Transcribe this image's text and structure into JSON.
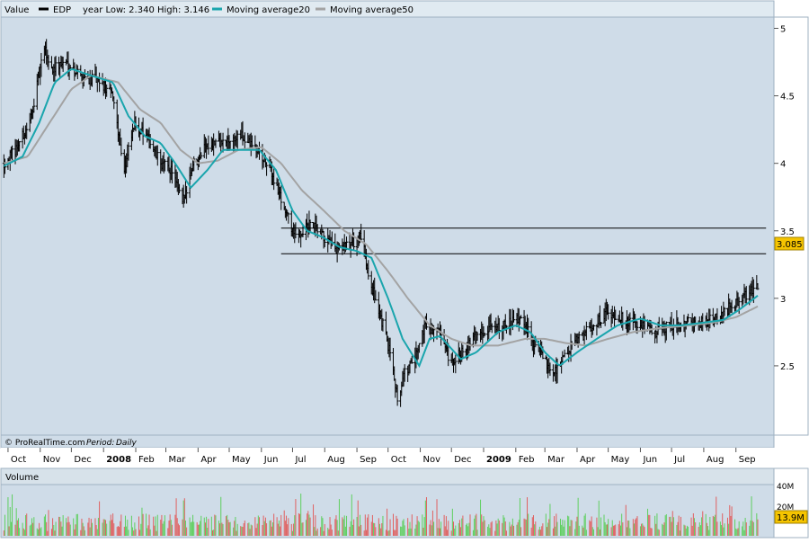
{
  "legend": {
    "value_label": "Value",
    "symbol": "EDP",
    "range_text": "year Low: 2.340 High: 3.146",
    "ma20_label": "Moving average20",
    "ma50_label": "Moving average50"
  },
  "footer": {
    "brand": "© ProRealTime.com",
    "period_label": "Period:",
    "period_value": "Daily"
  },
  "volume_panel": {
    "title": "Volume",
    "ticks": [
      "40M",
      "20M"
    ],
    "last_value": "13.9M"
  },
  "last_price_label": "3.085",
  "colors": {
    "plot_bg": "#cfdce8",
    "price_bar": "#000000",
    "ma20": "#1aa5ad",
    "ma50": "#a3a3a3",
    "vol_up": "#5fcf5f",
    "vol_down": "#e06060",
    "last_label_bg": "#f5c400",
    "header_bg": "#e0eaf1"
  },
  "chart_data": {
    "type": "ohlc",
    "symbol": "EDP",
    "y_ticks": [
      2.5,
      3,
      3.5,
      4,
      4.5,
      5
    ],
    "ylim": [
      2.0,
      5.05
    ],
    "x_labels": [
      {
        "text": "Oct",
        "x": "2007-10-01"
      },
      {
        "text": "Nov",
        "x": "2007-11-01"
      },
      {
        "text": "Dec",
        "x": "2007-12-01"
      },
      {
        "text": "2008",
        "x": "2008-01-01",
        "bold": true
      },
      {
        "text": "Feb",
        "x": "2008-02-01"
      },
      {
        "text": "Mar",
        "x": "2008-03-01"
      },
      {
        "text": "Apr",
        "x": "2008-04-01"
      },
      {
        "text": "May",
        "x": "2008-05-01"
      },
      {
        "text": "Jun",
        "x": "2008-06-01"
      },
      {
        "text": "Jul",
        "x": "2008-07-01"
      },
      {
        "text": "Aug",
        "x": "2008-08-01"
      },
      {
        "text": "Sep",
        "x": "2008-09-01"
      },
      {
        "text": "Oct",
        "x": "2008-10-01"
      },
      {
        "text": "Nov",
        "x": "2008-11-01"
      },
      {
        "text": "Dec",
        "x": "2008-12-01"
      },
      {
        "text": "2009",
        "x": "2009-01-01",
        "bold": true
      },
      {
        "text": "Feb",
        "x": "2009-02-01"
      },
      {
        "text": "Mar",
        "x": "2009-03-01"
      },
      {
        "text": "Apr",
        "x": "2009-04-01"
      },
      {
        "text": "May",
        "x": "2009-05-01"
      },
      {
        "text": "Jun",
        "x": "2009-06-01"
      },
      {
        "text": "Jul",
        "x": "2009-07-01"
      },
      {
        "text": "Aug",
        "x": "2009-08-01"
      },
      {
        "text": "Sep",
        "x": "2009-09-01"
      }
    ],
    "xlim": [
      "2007-09-25",
      "2009-10-05"
    ],
    "price_anchors": [
      [
        "2007-09-27",
        4.0
      ],
      [
        "2007-10-08",
        4.1
      ],
      [
        "2007-10-22",
        4.3
      ],
      [
        "2007-11-05",
        4.85
      ],
      [
        "2007-11-12",
        4.7
      ],
      [
        "2007-11-26",
        4.75
      ],
      [
        "2007-12-10",
        4.65
      ],
      [
        "2007-12-28",
        4.6
      ],
      [
        "2008-01-10",
        4.5
      ],
      [
        "2008-01-21",
        3.95
      ],
      [
        "2008-01-31",
        4.3
      ],
      [
        "2008-02-15",
        4.15
      ],
      [
        "2008-02-25",
        4.0
      ],
      [
        "2008-03-07",
        3.95
      ],
      [
        "2008-03-17",
        3.7
      ],
      [
        "2008-03-27",
        4.0
      ],
      [
        "2008-04-11",
        4.15
      ],
      [
        "2008-04-25",
        4.15
      ],
      [
        "2008-05-12",
        4.2
      ],
      [
        "2008-05-28",
        4.1
      ],
      [
        "2008-06-10",
        3.95
      ],
      [
        "2008-06-24",
        3.65
      ],
      [
        "2008-07-04",
        3.45
      ],
      [
        "2008-07-18",
        3.55
      ],
      [
        "2008-07-31",
        3.45
      ],
      [
        "2008-08-12",
        3.35
      ],
      [
        "2008-08-25",
        3.4
      ],
      [
        "2008-09-05",
        3.45
      ],
      [
        "2008-09-15",
        3.1
      ],
      [
        "2008-09-26",
        2.8
      ],
      [
        "2008-10-06",
        2.5
      ],
      [
        "2008-10-10",
        2.25
      ],
      [
        "2008-10-17",
        2.45
      ],
      [
        "2008-10-27",
        2.55
      ],
      [
        "2008-11-05",
        2.8
      ],
      [
        "2008-11-18",
        2.75
      ],
      [
        "2008-12-01",
        2.5
      ],
      [
        "2008-12-10",
        2.6
      ],
      [
        "2008-12-22",
        2.7
      ],
      [
        "2009-01-07",
        2.8
      ],
      [
        "2009-01-23",
        2.8
      ],
      [
        "2009-02-06",
        2.85
      ],
      [
        "2009-02-20",
        2.65
      ],
      [
        "2009-03-09",
        2.45
      ],
      [
        "2009-03-18",
        2.55
      ],
      [
        "2009-04-02",
        2.7
      ],
      [
        "2009-04-17",
        2.8
      ],
      [
        "2009-04-30",
        2.9
      ],
      [
        "2009-05-15",
        2.85
      ],
      [
        "2009-05-28",
        2.8
      ],
      [
        "2009-06-15",
        2.75
      ],
      [
        "2009-07-01",
        2.8
      ],
      [
        "2009-07-15",
        2.82
      ],
      [
        "2009-07-31",
        2.82
      ],
      [
        "2009-08-14",
        2.85
      ],
      [
        "2009-08-28",
        2.95
      ],
      [
        "2009-09-10",
        3.02
      ],
      [
        "2009-09-22",
        3.085
      ]
    ],
    "ma20_anchors": [
      [
        "2007-09-27",
        3.98
      ],
      [
        "2007-10-15",
        4.05
      ],
      [
        "2007-10-31",
        4.3
      ],
      [
        "2007-11-15",
        4.6
      ],
      [
        "2007-12-01",
        4.7
      ],
      [
        "2007-12-20",
        4.65
      ],
      [
        "2008-01-10",
        4.6
      ],
      [
        "2008-01-25",
        4.35
      ],
      [
        "2008-02-10",
        4.2
      ],
      [
        "2008-02-25",
        4.15
      ],
      [
        "2008-03-10",
        4.0
      ],
      [
        "2008-03-25",
        3.82
      ],
      [
        "2008-04-10",
        3.95
      ],
      [
        "2008-04-25",
        4.1
      ],
      [
        "2008-05-15",
        4.1
      ],
      [
        "2008-05-30",
        4.1
      ],
      [
        "2008-06-15",
        3.95
      ],
      [
        "2008-07-01",
        3.65
      ],
      [
        "2008-07-15",
        3.5
      ],
      [
        "2008-07-31",
        3.45
      ],
      [
        "2008-08-15",
        3.38
      ],
      [
        "2008-09-01",
        3.35
      ],
      [
        "2008-09-15",
        3.3
      ],
      [
        "2008-10-01",
        3.0
      ],
      [
        "2008-10-15",
        2.7
      ],
      [
        "2008-10-31",
        2.5
      ],
      [
        "2008-11-10",
        2.7
      ],
      [
        "2008-11-20",
        2.72
      ],
      [
        "2008-12-10",
        2.55
      ],
      [
        "2008-12-25",
        2.6
      ],
      [
        "2009-01-15",
        2.75
      ],
      [
        "2009-02-01",
        2.8
      ],
      [
        "2009-02-15",
        2.75
      ],
      [
        "2009-03-01",
        2.6
      ],
      [
        "2009-03-15",
        2.5
      ],
      [
        "2009-04-01",
        2.6
      ],
      [
        "2009-04-20",
        2.7
      ],
      [
        "2009-05-10",
        2.8
      ],
      [
        "2009-06-01",
        2.85
      ],
      [
        "2009-06-20",
        2.8
      ],
      [
        "2009-07-10",
        2.8
      ],
      [
        "2009-08-01",
        2.82
      ],
      [
        "2009-08-20",
        2.84
      ],
      [
        "2009-09-05",
        2.92
      ],
      [
        "2009-09-22",
        3.02
      ]
    ],
    "ma50_anchors": [
      [
        "2007-09-27",
        4.0
      ],
      [
        "2007-10-20",
        4.05
      ],
      [
        "2007-11-10",
        4.3
      ],
      [
        "2007-12-01",
        4.55
      ],
      [
        "2007-12-20",
        4.65
      ],
      [
        "2008-01-15",
        4.6
      ],
      [
        "2008-02-05",
        4.4
      ],
      [
        "2008-02-25",
        4.3
      ],
      [
        "2008-03-15",
        4.1
      ],
      [
        "2008-04-01",
        4.0
      ],
      [
        "2008-04-20",
        4.02
      ],
      [
        "2008-05-10",
        4.1
      ],
      [
        "2008-06-01",
        4.12
      ],
      [
        "2008-06-20",
        4.0
      ],
      [
        "2008-07-10",
        3.8
      ],
      [
        "2008-07-31",
        3.65
      ],
      [
        "2008-08-20",
        3.5
      ],
      [
        "2008-09-10",
        3.4
      ],
      [
        "2008-10-01",
        3.2
      ],
      [
        "2008-10-20",
        3.0
      ],
      [
        "2008-11-10",
        2.8
      ],
      [
        "2008-12-01",
        2.7
      ],
      [
        "2008-12-20",
        2.65
      ],
      [
        "2009-01-15",
        2.65
      ],
      [
        "2009-02-10",
        2.7
      ],
      [
        "2009-03-01",
        2.7
      ],
      [
        "2009-03-20",
        2.67
      ],
      [
        "2009-04-10",
        2.65
      ],
      [
        "2009-05-01",
        2.7
      ],
      [
        "2009-05-25",
        2.75
      ],
      [
        "2009-06-20",
        2.78
      ],
      [
        "2009-07-20",
        2.8
      ],
      [
        "2009-08-10",
        2.82
      ],
      [
        "2009-09-01",
        2.86
      ],
      [
        "2009-09-22",
        2.94
      ]
    ],
    "hlines": [
      {
        "y": 3.52,
        "x_start": "2008-06-20",
        "x_end": "2009-09-30"
      },
      {
        "y": 3.33,
        "x_start": "2008-06-20",
        "x_end": "2009-09-30"
      }
    ],
    "last_price": 3.085,
    "volume": {
      "ylim": [
        0,
        50
      ],
      "unit": "M",
      "base_level": 12,
      "last_value": 13.9
    }
  }
}
